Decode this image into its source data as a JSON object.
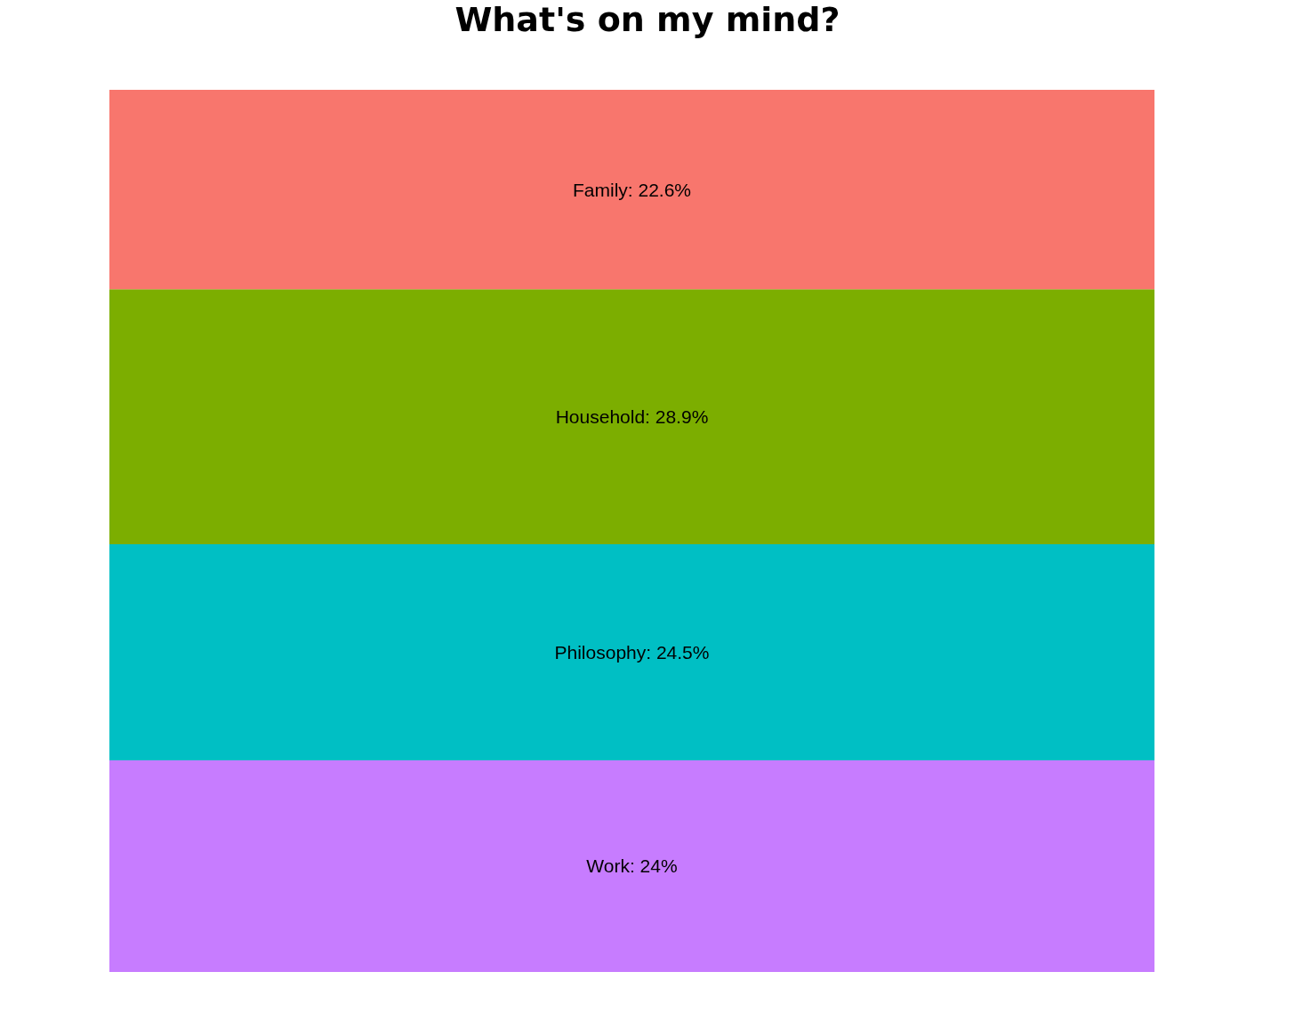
{
  "chart_data": {
    "type": "bar",
    "title": "What's on my mind?",
    "categories": [
      null
    ],
    "stacked": true,
    "series": [
      {
        "color": "#c77cff",
        "values": [
          24
        ],
        "value_labels": [
          "Work: 24%"
        ]
      },
      {
        "color": "#00bfc4",
        "values": [
          24.5
        ],
        "value_labels": [
          "Philosophy: 24.5%"
        ]
      },
      {
        "color": "#7cae00",
        "values": [
          28.9
        ],
        "value_labels": [
          "Household: 28.9%"
        ]
      },
      {
        "color": "#f8766d",
        "values": [
          22.6
        ],
        "value_labels": [
          "Family: 22.6%"
        ]
      }
    ]
  }
}
